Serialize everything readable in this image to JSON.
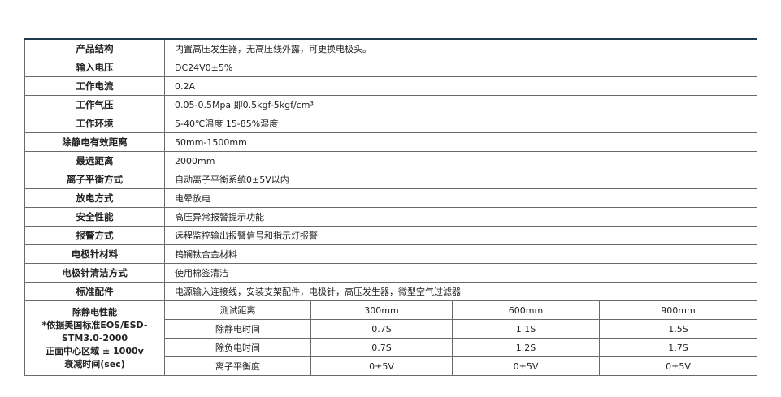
{
  "rows": [
    {
      "label": "产品结构",
      "value": "内置高压发生器，无高压线外露，可更换电极头。"
    },
    {
      "label": "输入电压",
      "value": "DC24V0±5%"
    },
    {
      "label": "工作电流",
      "value": "0.2A"
    },
    {
      "label": "工作气压",
      "value": "0.05-0.5Mpa 即0.5kgf-5kgf/cm³"
    },
    {
      "label": "工作环境",
      "value": "5-40℃温度  15-85%湿度"
    },
    {
      "label": "除静电有效距离",
      "value": "50mm-1500mm"
    },
    {
      "label": "最远距离",
      "value": "2000mm"
    },
    {
      "label": "离子平衡方式",
      "value": "自动离子平衡系统0±5V以内"
    },
    {
      "label": "放电方式",
      "value": "电晕放电"
    },
    {
      "label": "安全性能",
      "value": "高压异常报警提示功能"
    },
    {
      "label": "报警方式",
      "value": "远程监控输出报警信号和指示灯报警"
    },
    {
      "label": "电极针材料",
      "value": "钨镧钛合金材料"
    },
    {
      "label": "电极针清洁方式",
      "value": "使用棉签清洁"
    },
    {
      "label": "标准配件",
      "value": "电源输入连接线，安装支架配件，电极针，高压发生器，微型空气过滤器"
    }
  ],
  "performance": {
    "label_lines": [
      "除静电性能",
      "*依据美国标准EOS/ESD-",
      "STM3.0-2000",
      "正面中心区域 ± 1000v",
      "衰减时间(sec)"
    ],
    "rows": [
      {
        "name": "测试距离",
        "values": [
          "300mm",
          "600mm",
          "900mm"
        ]
      },
      {
        "name": "除静电时间",
        "values": [
          "0.7S",
          "1.1S",
          "1.5S"
        ]
      },
      {
        "name": "除负电时间",
        "values": [
          "0.7S",
          "1.2S",
          "1.7S"
        ]
      },
      {
        "name": "离子平衡度",
        "values": [
          "0±5V",
          "0±5V",
          "0±5V"
        ]
      }
    ]
  }
}
